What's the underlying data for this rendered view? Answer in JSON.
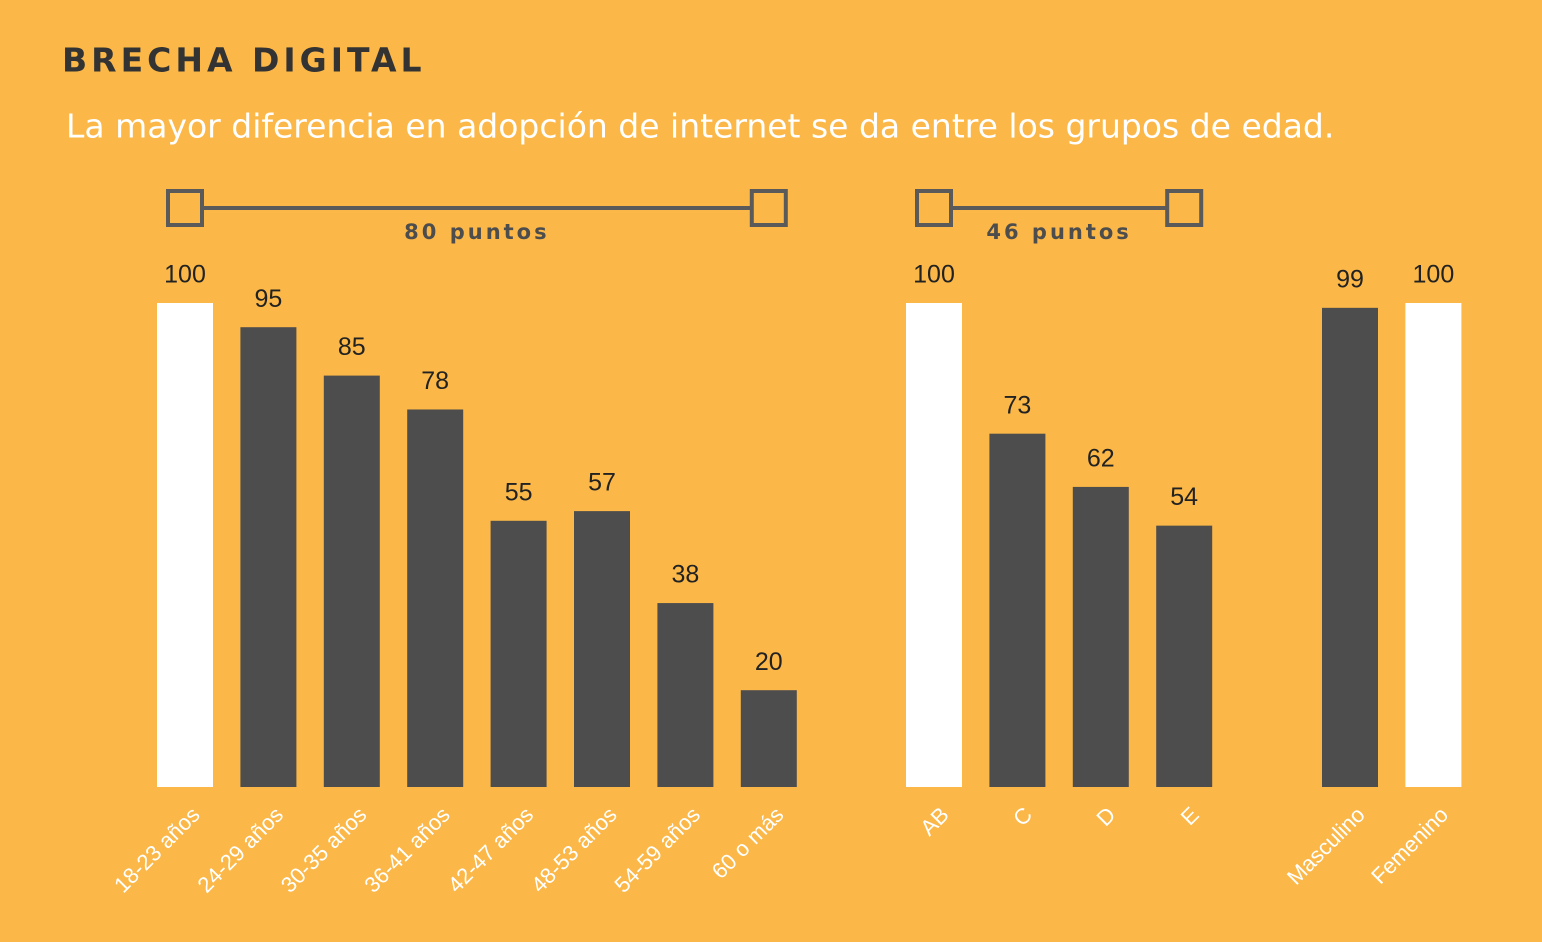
{
  "title": "BRECHA DIGITAL",
  "subtitle": "La mayor diferencia en adopción de internet se da entre los grupos de edad.",
  "chart_data": [
    {
      "type": "bar",
      "annotation": "80 puntos",
      "categories": [
        "18-23 años",
        "24-29 años",
        "30-35 años",
        "36-41 años",
        "42-47 años",
        "48-53 años",
        "54-59 años",
        "60 o más"
      ],
      "values": [
        100,
        95,
        85,
        78,
        55,
        57,
        38,
        20
      ],
      "colors": [
        "#ffffff",
        "#4d4d4d",
        "#4d4d4d",
        "#4d4d4d",
        "#4d4d4d",
        "#4d4d4d",
        "#4d4d4d",
        "#4d4d4d"
      ],
      "ylim": [
        0,
        100
      ]
    },
    {
      "type": "bar",
      "annotation": "46 puntos",
      "categories": [
        "AB",
        "C",
        "D",
        "E"
      ],
      "values": [
        100,
        73,
        62,
        54
      ],
      "colors": [
        "#ffffff",
        "#4d4d4d",
        "#4d4d4d",
        "#4d4d4d"
      ],
      "ylim": [
        0,
        100
      ]
    },
    {
      "type": "bar",
      "categories": [
        "Masculino",
        "Femenino"
      ],
      "values": [
        99,
        100
      ],
      "colors": [
        "#4d4d4d",
        "#ffffff"
      ],
      "ylim": [
        0,
        100
      ]
    }
  ]
}
